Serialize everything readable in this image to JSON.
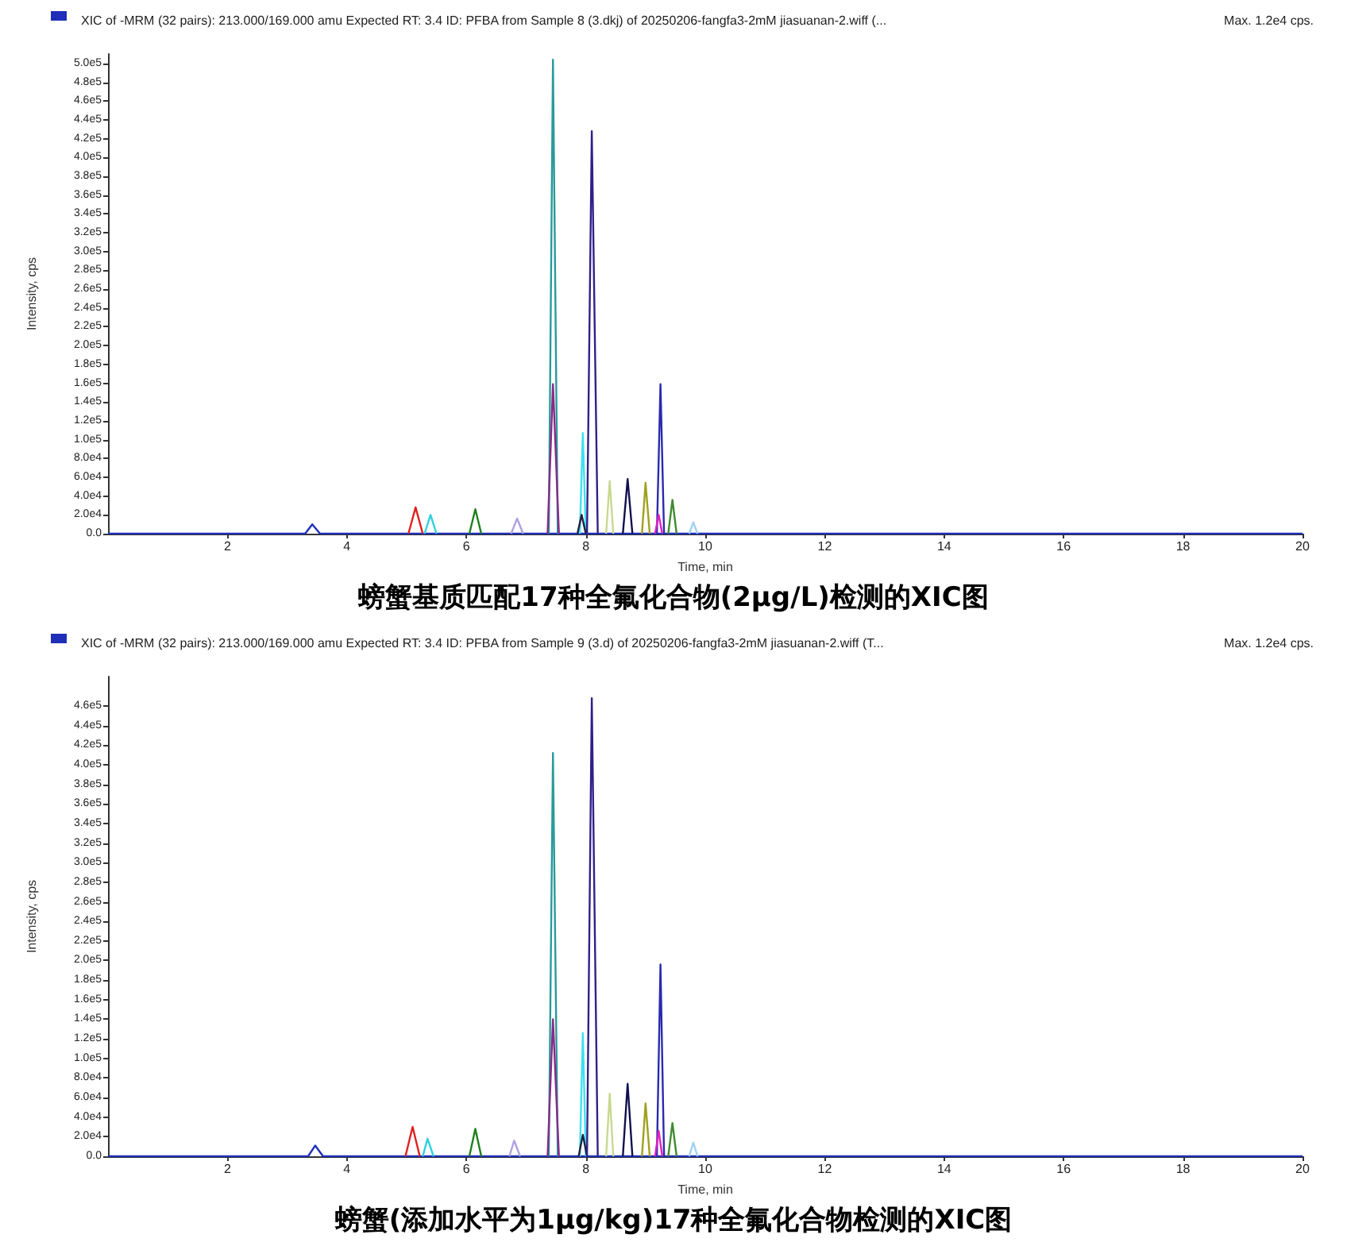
{
  "chart_data": [
    {
      "type": "line",
      "title": "螃蟹基质匹配17种全氟化合物(2μg/L)检测的XIC图",
      "subtitle": "XIC of -MRM (32 pairs): 213.000/169.000 amu Expected RT: 3.4 ID: PFBA from Sample 8 (3.dkj) of 20250206-fangfa3-2mM jiasuanan-2.wiff (...",
      "annotations": [
        "Max. 1.2e4 cps."
      ],
      "xlabel": "Time, min",
      "ylabel": "Intensity, cps",
      "xlim": [
        0,
        20
      ],
      "xticks": [
        2,
        4,
        6,
        8,
        10,
        12,
        14,
        16,
        18,
        20
      ],
      "ylim": [
        0,
        510000
      ],
      "yticks": [
        {
          "value": 0,
          "label": "0.0"
        },
        {
          "value": 20000,
          "label": "2.0e4"
        },
        {
          "value": 40000,
          "label": "4.0e4"
        },
        {
          "value": 60000,
          "label": "6.0e4"
        },
        {
          "value": 80000,
          "label": "8.0e4"
        },
        {
          "value": 100000,
          "label": "1.0e5"
        },
        {
          "value": 120000,
          "label": "1.2e5"
        },
        {
          "value": 140000,
          "label": "1.4e5"
        },
        {
          "value": 160000,
          "label": "1.6e5"
        },
        {
          "value": 180000,
          "label": "1.8e5"
        },
        {
          "value": 200000,
          "label": "2.0e5"
        },
        {
          "value": 220000,
          "label": "2.2e5"
        },
        {
          "value": 240000,
          "label": "2.4e5"
        },
        {
          "value": 260000,
          "label": "2.6e5"
        },
        {
          "value": 280000,
          "label": "2.8e5"
        },
        {
          "value": 300000,
          "label": "3.0e5"
        },
        {
          "value": 320000,
          "label": "3.2e5"
        },
        {
          "value": 340000,
          "label": "3.4e5"
        },
        {
          "value": 360000,
          "label": "3.6e5"
        },
        {
          "value": 380000,
          "label": "3.8e5"
        },
        {
          "value": 400000,
          "label": "4.0e5"
        },
        {
          "value": 420000,
          "label": "4.2e5"
        },
        {
          "value": 440000,
          "label": "4.4e5"
        },
        {
          "value": 460000,
          "label": "4.6e5"
        },
        {
          "value": 480000,
          "label": "4.8e5"
        },
        {
          "value": 500000,
          "label": "5.0e5"
        }
      ],
      "grid": false,
      "marker": "none",
      "series": [
        {
          "color": "#1f2fb8",
          "x": [
            0,
            3.3,
            3.42,
            3.55,
            20
          ],
          "values": [
            0,
            0,
            10000,
            0,
            0
          ]
        },
        {
          "color": "#e02020",
          "x": [
            5.03,
            5.15,
            5.27
          ],
          "values": [
            0,
            28000,
            0
          ]
        },
        {
          "color": "#30d0e0",
          "x": [
            5.3,
            5.4,
            5.5
          ],
          "values": [
            0,
            20000,
            0
          ]
        },
        {
          "color": "#208020",
          "x": [
            6.05,
            6.15,
            6.25
          ],
          "values": [
            0,
            26000,
            0
          ]
        },
        {
          "color": "#b0a0e0",
          "x": [
            6.75,
            6.85,
            6.95
          ],
          "values": [
            0,
            16000,
            0
          ]
        },
        {
          "color": "#2a9a9a",
          "x": [
            7.38,
            7.45,
            7.53
          ],
          "values": [
            0,
            504000,
            0
          ]
        },
        {
          "color": "#8a2a8a",
          "x": [
            7.36,
            7.45,
            7.55
          ],
          "values": [
            0,
            159000,
            0
          ]
        },
        {
          "color": "#40e0f0",
          "x": [
            7.9,
            7.95,
            8.0
          ],
          "values": [
            0,
            107000,
            0
          ]
        },
        {
          "color": "#202040",
          "x": [
            7.86,
            7.93,
            8.0
          ],
          "values": [
            0,
            20000,
            0
          ]
        },
        {
          "color": "#30208a",
          "x": [
            8.02,
            8.1,
            8.2
          ],
          "values": [
            0,
            428000,
            0
          ]
        },
        {
          "color": "#c8d890",
          "x": [
            8.34,
            8.4,
            8.46
          ],
          "values": [
            0,
            56000,
            0
          ]
        },
        {
          "color": "#101050",
          "x": [
            8.62,
            8.7,
            8.78
          ],
          "values": [
            0,
            58000,
            0
          ]
        },
        {
          "color": "#a0a020",
          "x": [
            8.94,
            9.0,
            9.07
          ],
          "values": [
            0,
            54000,
            0
          ]
        },
        {
          "color": "#2a2ab0",
          "x": [
            9.19,
            9.25,
            9.31
          ],
          "values": [
            0,
            159000,
            0
          ]
        },
        {
          "color": "#e020c0",
          "x": [
            9.16,
            9.22,
            9.28
          ],
          "values": [
            0,
            20000,
            0
          ]
        },
        {
          "color": "#408a30",
          "x": [
            9.38,
            9.45,
            9.52
          ],
          "values": [
            0,
            36000,
            0
          ]
        },
        {
          "color": "#a0d0f0",
          "x": [
            9.73,
            9.8,
            9.87
          ],
          "values": [
            0,
            12000,
            0
          ]
        }
      ]
    },
    {
      "type": "line",
      "title": "螃蟹(添加水平为1μg/kg)17种全氟化合物检测的XIC图",
      "subtitle": "XIC of -MRM (32 pairs): 213.000/169.000 amu Expected RT: 3.4 ID: PFBA from Sample 9 (3.d) of 20250206-fangfa3-2mM jiasuanan-2.wiff (T...",
      "annotations": [
        "Max. 1.2e4 cps."
      ],
      "xlabel": "Time, min",
      "ylabel": "Intensity, cps",
      "xlim": [
        0,
        20
      ],
      "xticks": [
        2,
        4,
        6,
        8,
        10,
        12,
        14,
        16,
        18,
        20
      ],
      "ylim": [
        0,
        490000
      ],
      "yticks": [
        {
          "value": 0,
          "label": "0.0"
        },
        {
          "value": 20000,
          "label": "2.0e4"
        },
        {
          "value": 40000,
          "label": "4.0e4"
        },
        {
          "value": 60000,
          "label": "6.0e4"
        },
        {
          "value": 80000,
          "label": "8.0e4"
        },
        {
          "value": 100000,
          "label": "1.0e5"
        },
        {
          "value": 120000,
          "label": "1.2e5"
        },
        {
          "value": 140000,
          "label": "1.4e5"
        },
        {
          "value": 160000,
          "label": "1.6e5"
        },
        {
          "value": 180000,
          "label": "1.8e5"
        },
        {
          "value": 200000,
          "label": "2.0e5"
        },
        {
          "value": 220000,
          "label": "2.2e5"
        },
        {
          "value": 240000,
          "label": "2.4e5"
        },
        {
          "value": 260000,
          "label": "2.6e5"
        },
        {
          "value": 280000,
          "label": "2.8e5"
        },
        {
          "value": 300000,
          "label": "3.0e5"
        },
        {
          "value": 320000,
          "label": "3.2e5"
        },
        {
          "value": 340000,
          "label": "3.4e5"
        },
        {
          "value": 360000,
          "label": "3.6e5"
        },
        {
          "value": 380000,
          "label": "3.8e5"
        },
        {
          "value": 400000,
          "label": "4.0e5"
        },
        {
          "value": 420000,
          "label": "4.2e5"
        },
        {
          "value": 440000,
          "label": "4.4e5"
        },
        {
          "value": 460000,
          "label": "4.6e5"
        }
      ],
      "grid": false,
      "marker": "none",
      "series": [
        {
          "color": "#1f2fb8",
          "x": [
            0,
            3.35,
            3.47,
            3.6,
            20
          ],
          "values": [
            0,
            0,
            11000,
            0,
            0
          ]
        },
        {
          "color": "#e02020",
          "x": [
            4.98,
            5.1,
            5.22
          ],
          "values": [
            0,
            30000,
            0
          ]
        },
        {
          "color": "#30d0e0",
          "x": [
            5.27,
            5.35,
            5.45
          ],
          "values": [
            0,
            18000,
            0
          ]
        },
        {
          "color": "#208020",
          "x": [
            6.05,
            6.15,
            6.25
          ],
          "values": [
            0,
            28000,
            0
          ]
        },
        {
          "color": "#b0a0e0",
          "x": [
            6.72,
            6.8,
            6.9
          ],
          "values": [
            0,
            16000,
            0
          ]
        },
        {
          "color": "#2a9a9a",
          "x": [
            7.38,
            7.45,
            7.53
          ],
          "values": [
            0,
            412000,
            0
          ]
        },
        {
          "color": "#8a2a8a",
          "x": [
            7.36,
            7.45,
            7.55
          ],
          "values": [
            0,
            140000,
            0
          ]
        },
        {
          "color": "#40e0f0",
          "x": [
            7.9,
            7.95,
            8.0
          ],
          "values": [
            0,
            126000,
            0
          ]
        },
        {
          "color": "#202040",
          "x": [
            7.88,
            7.95,
            8.02
          ],
          "values": [
            0,
            22000,
            0
          ]
        },
        {
          "color": "#30208a",
          "x": [
            8.02,
            8.1,
            8.2
          ],
          "values": [
            0,
            468000,
            0
          ]
        },
        {
          "color": "#c8d890",
          "x": [
            8.34,
            8.4,
            8.46
          ],
          "values": [
            0,
            64000,
            0
          ]
        },
        {
          "color": "#101050",
          "x": [
            8.62,
            8.7,
            8.78
          ],
          "values": [
            0,
            74000,
            0
          ]
        },
        {
          "color": "#a0a020",
          "x": [
            8.94,
            9.0,
            9.07
          ],
          "values": [
            0,
            54000,
            0
          ]
        },
        {
          "color": "#2a2ab0",
          "x": [
            9.19,
            9.25,
            9.31
          ],
          "values": [
            0,
            196000,
            0
          ]
        },
        {
          "color": "#e020c0",
          "x": [
            9.16,
            9.22,
            9.28
          ],
          "values": [
            0,
            26000,
            0
          ]
        },
        {
          "color": "#408a30",
          "x": [
            9.38,
            9.45,
            9.52
          ],
          "values": [
            0,
            34000,
            0
          ]
        },
        {
          "color": "#a0d0f0",
          "x": [
            9.73,
            9.8,
            9.87
          ],
          "values": [
            0,
            14000,
            0
          ]
        }
      ]
    }
  ]
}
